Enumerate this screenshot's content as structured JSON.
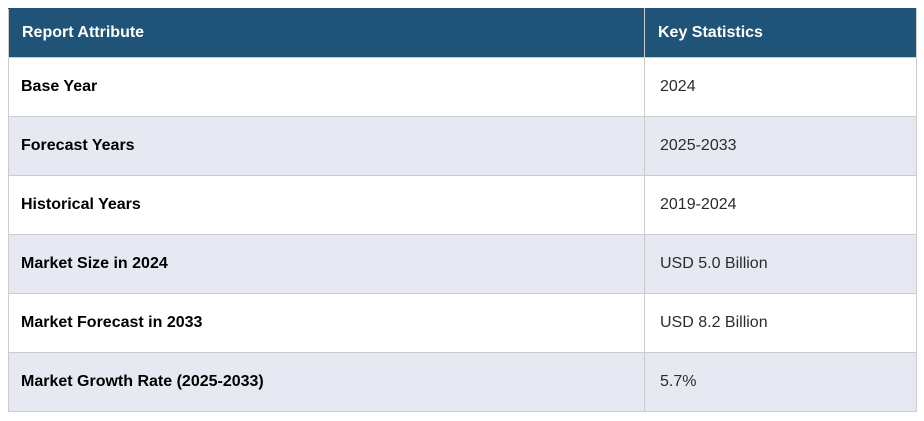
{
  "table": {
    "columns": [
      "Report Attribute",
      "Key Statistics"
    ],
    "rows": [
      {
        "attribute": "Base Year",
        "value": "2024"
      },
      {
        "attribute": "Forecast Years",
        "value": "2025-2033"
      },
      {
        "attribute": "Historical Years",
        "value": "2019-2024"
      },
      {
        "attribute": "Market Size in 2024",
        "value": "USD 5.0 Billion"
      },
      {
        "attribute": "Market Forecast in 2033",
        "value": "USD 8.2 Billion"
      },
      {
        "attribute": "Market Growth Rate (2025-2033)",
        "value": "5.7%"
      }
    ]
  },
  "theme": {
    "header_bg": "#1F5378",
    "header_text": "#FFFFFF",
    "row_bg": "#FFFFFF",
    "alt_row_bg": "#E7E9F2",
    "border_color": "#CCCCCC",
    "attribute_text": "#000000",
    "value_text": "#2B2B2B"
  },
  "chart_data": {
    "type": "table",
    "title": "",
    "columns": [
      "Report Attribute",
      "Key Statistics"
    ],
    "rows": [
      [
        "Base Year",
        "2024"
      ],
      [
        "Forecast Years",
        "2025-2033"
      ],
      [
        "Historical Years",
        "2019-2024"
      ],
      [
        "Market Size in 2024",
        "USD 5.0 Billion"
      ],
      [
        "Market Forecast in 2033",
        "USD 8.2 Billion"
      ],
      [
        "Market Growth Rate (2025-2033)",
        "5.7%"
      ]
    ]
  }
}
